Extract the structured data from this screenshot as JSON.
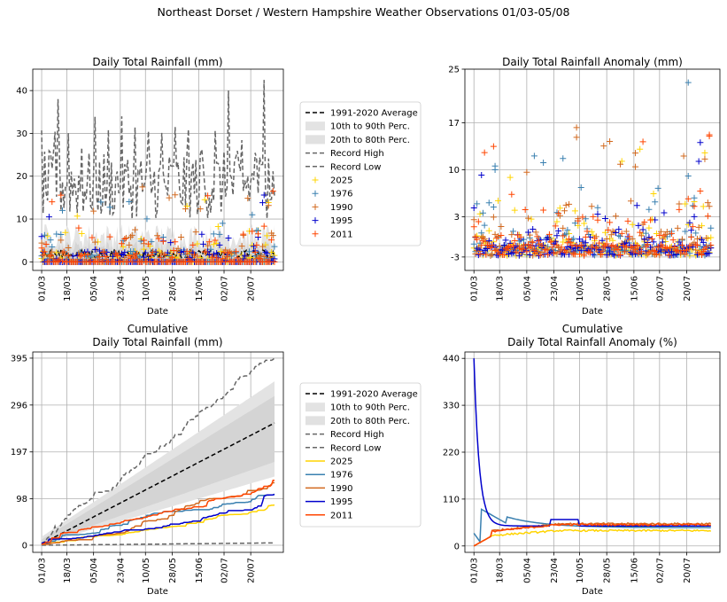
{
  "suptitle": "Northeast Dorset / Western Hampshire Weather Observations 01/03-05/08",
  "date_labels": [
    "01/03",
    "18/03",
    "05/04",
    "23/04",
    "10/05",
    "28/05",
    "15/06",
    "02/07",
    "20/07"
  ],
  "colors": {
    "average": "#000000",
    "band_10_90": "#e3e3e3",
    "band_20_80": "#cdcdcd",
    "record": "#666666",
    "y2025": "#ffd400",
    "y1976": "#3a80b0",
    "y1990": "#d2691e",
    "y1995": "#0000cc",
    "y2011": "#ff4500",
    "grid": "#b0b0b0"
  },
  "legend": {
    "entries": [
      "1991-2020 Average",
      "10th to 90th Perc.",
      "20th to 80th Perc.",
      "Record High",
      "Record Low",
      "2025",
      "1976",
      "1990",
      "1995",
      "2011"
    ]
  },
  "chart_data": [
    {
      "type": "scatter",
      "title": "Daily Total Rainfall (mm)",
      "xlabel": "Date",
      "ylabel": "",
      "ylim": [
        -2,
        45
      ],
      "yticks": [
        0,
        10,
        20,
        30,
        40
      ],
      "xlim": [
        -6,
        163
      ],
      "days": 158,
      "average_level": 1.8,
      "record_high_peaks": [
        38,
        40,
        42.5
      ],
      "series": [
        {
          "name": "2025",
          "marker": "+",
          "values_desc": "mostly 0-3 mm, occasional 5-15 mm"
        },
        {
          "name": "1976",
          "marker": "+",
          "values_desc": "mostly 0 mm, peaks ~10-12 mm"
        },
        {
          "name": "1990",
          "marker": "+",
          "values_desc": "mostly 0-2 mm, peaks ~17.5 mm"
        },
        {
          "name": "1995",
          "marker": "+",
          "values_desc": "0-10 mm, early peak ~10.5 mm"
        },
        {
          "name": "2011",
          "marker": "+",
          "values_desc": "mostly 0 mm, peak ~16.5 mm near end"
        }
      ]
    },
    {
      "type": "scatter",
      "title": "Daily Total Rainfall Anomaly (mm)",
      "xlabel": "Date",
      "ylabel": "",
      "ylim": [
        -5,
        25
      ],
      "yticks": [
        -3,
        3,
        10,
        17,
        25
      ],
      "xlim": [
        -6,
        163
      ],
      "notable_points": [
        {
          "series": "1976",
          "x": 142,
          "y": 23
        },
        {
          "series": "1990",
          "x": 68,
          "y": 16.3
        },
        {
          "series": "2011",
          "x": 156,
          "y": 15
        },
        {
          "series": "1990",
          "x": 107,
          "y": 12.5
        },
        {
          "series": "1976",
          "x": 14,
          "y": 10
        }
      ]
    },
    {
      "type": "line",
      "title": "Cumulative\nDaily Total Rainfall (mm)",
      "title_line1": "Cumulative",
      "title_line2": "Daily Total Rainfall (mm)",
      "xlabel": "Date",
      "ylabel": "",
      "ylim": [
        -15,
        408
      ],
      "yticks": [
        0,
        98,
        197,
        296,
        395
      ],
      "xlim": [
        -6,
        163
      ],
      "final_values": {
        "1991-2020 Average": 258,
        "Record High": 395,
        "Record Low": 5,
        "2025": 85,
        "1976": 108,
        "1990": 132,
        "1995": 107,
        "2011": 137,
        "P90": 346,
        "P10": 145,
        "P80": 315,
        "P20": 176
      }
    },
    {
      "type": "line",
      "title": "Cumulative\nDaily Total Rainfall Anomaly (%)",
      "title_line1": "Cumulative",
      "title_line2": "Daily Total Rainfall Anomaly (%)",
      "xlabel": "Date",
      "ylabel": "",
      "ylim": [
        -15,
        455
      ],
      "yticks": [
        0,
        110,
        220,
        330,
        440
      ],
      "xlim": [
        -6,
        163
      ],
      "final_values": {
        "2025": 36,
        "1976": 43,
        "1990": 52,
        "1995": 47,
        "2011": 50
      },
      "start_values": {
        "1995": 440,
        "1976": 30
      }
    }
  ]
}
